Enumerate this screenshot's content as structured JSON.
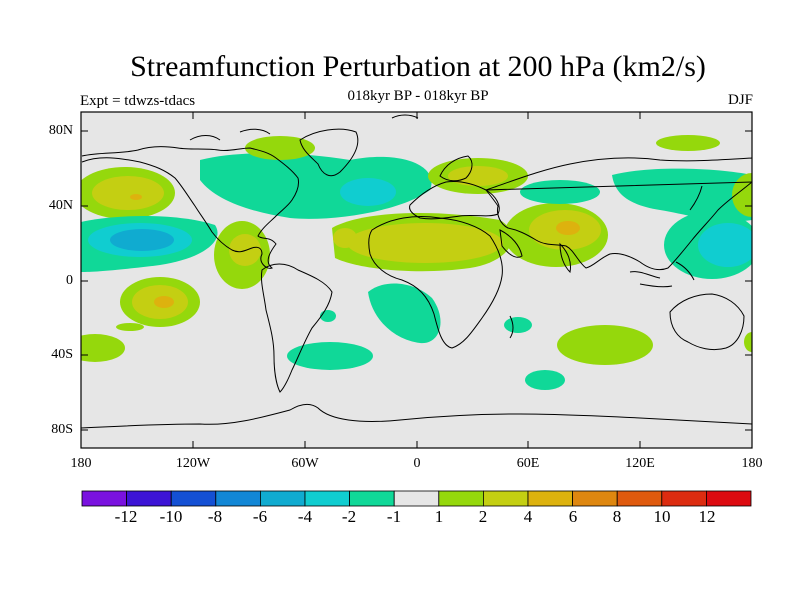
{
  "title": "Streamfunction Perturbation at 200 hPa (km2/s)",
  "subtitle": "018kyr BP - 018kyr BP",
  "experiment": "Expt = tdwzs-tdacs",
  "season": "DJF",
  "lat_labels": [
    "80N",
    "40N",
    "0",
    "40S",
    "80S"
  ],
  "lon_labels": [
    "180",
    "120W",
    "60W",
    "0",
    "60E",
    "120E",
    "180"
  ],
  "colorbar": {
    "labels": [
      "-12",
      "-10",
      "-8",
      "-6",
      "-4",
      "-2",
      "-1",
      "1",
      "2",
      "4",
      "6",
      "8",
      "10",
      "12"
    ],
    "colors": [
      "#7a12df",
      "#3d14d6",
      "#1450d4",
      "#1287d6",
      "#10abd0",
      "#10cdd0",
      "#10d898",
      "#e6e6e6",
      "#95d80c",
      "#c4cf12",
      "#ddb20e",
      "#de8710",
      "#df5a0e",
      "#dc2c10",
      "#dc0a10"
    ]
  },
  "colors": {
    "background": "#e6e6e6",
    "coast": "#000000"
  }
}
